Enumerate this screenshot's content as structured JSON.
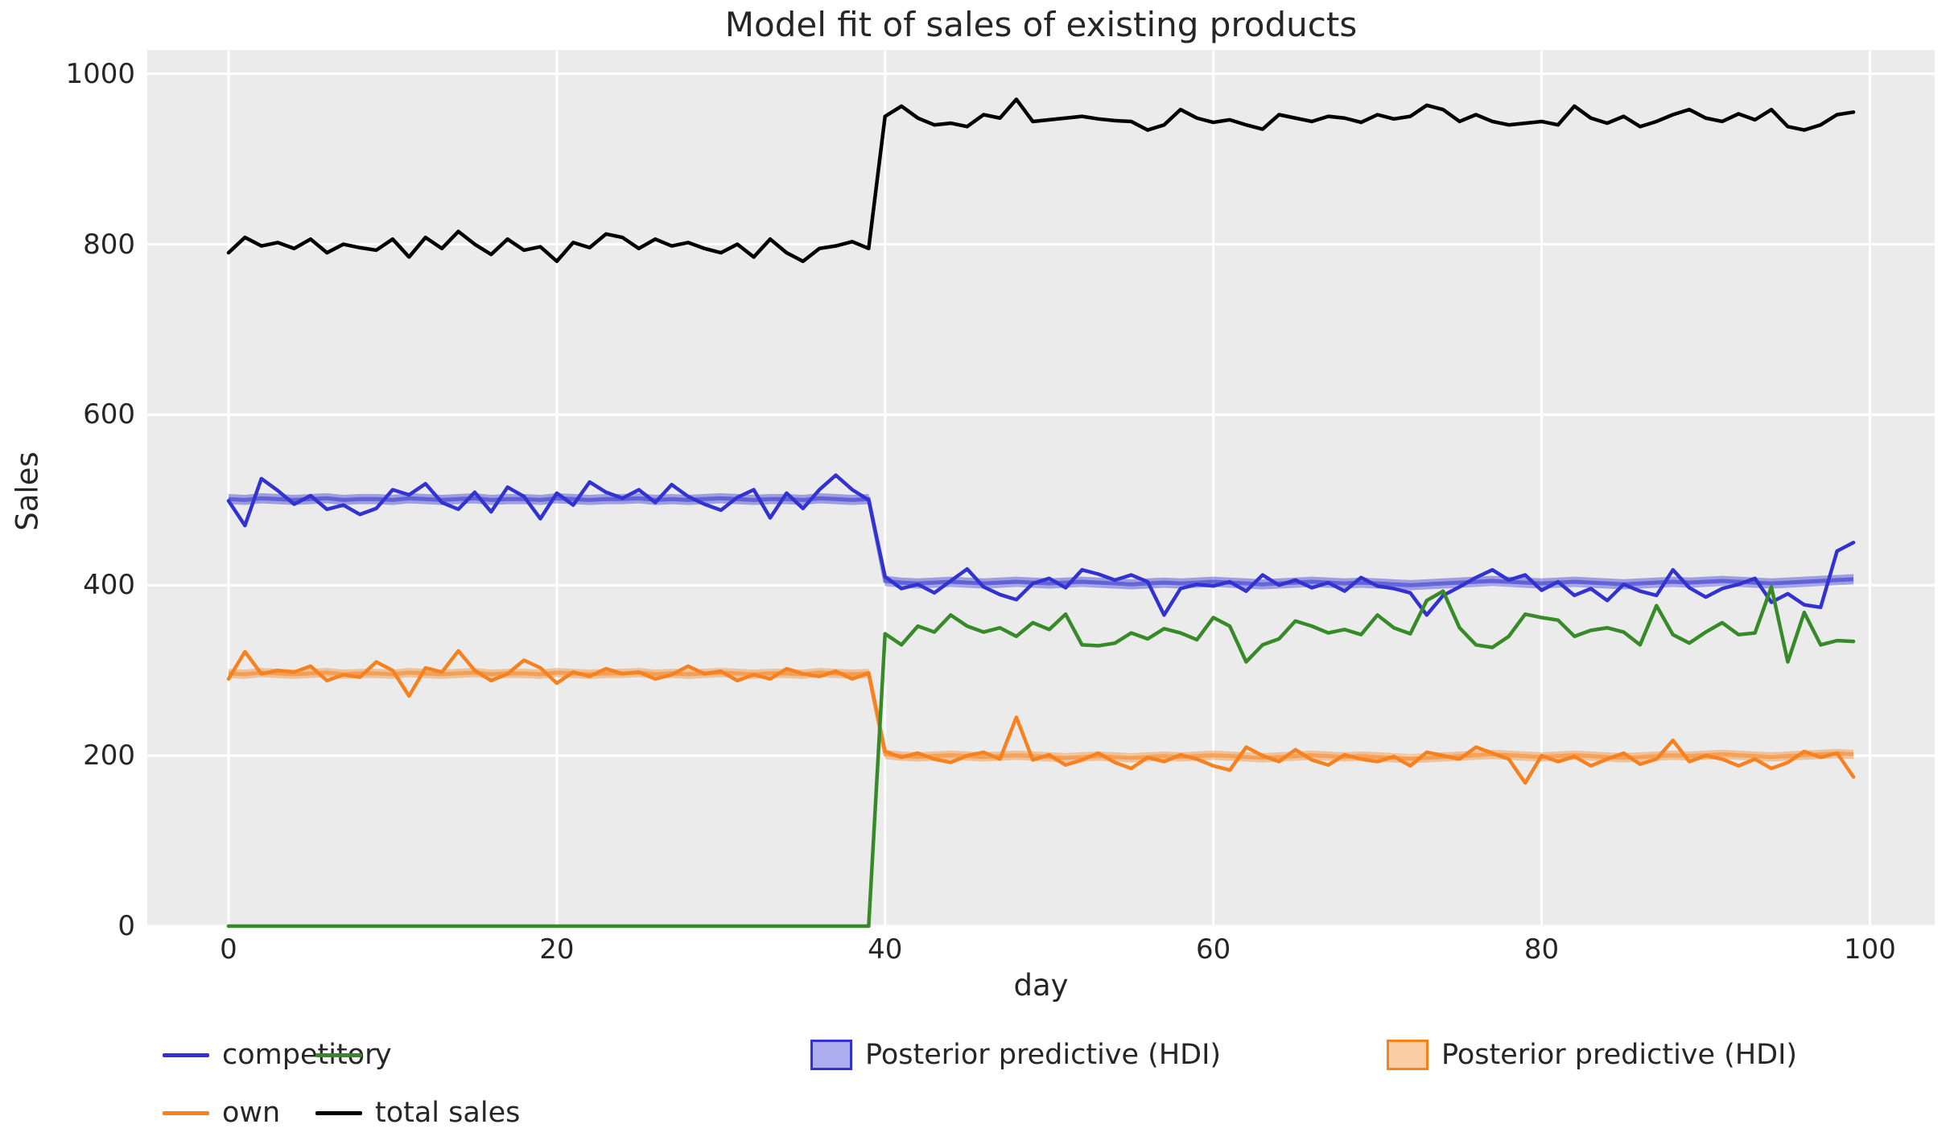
{
  "chart_data": {
    "type": "line",
    "title": "Model fit of sales of existing products",
    "xlabel": "day",
    "ylabel": "Sales",
    "xlim": [
      -4.95,
      103.95
    ],
    "ylim": [
      0,
      1028
    ],
    "x_ticks": [
      0,
      20,
      40,
      60,
      80,
      100
    ],
    "y_ticks": [
      0,
      200,
      400,
      600,
      800,
      1000
    ],
    "grid": true,
    "plot_background": "#ebebeb",
    "figure_background": "#ffffff",
    "grid_color": "#ffffff",
    "text_color": "#262626",
    "x": {
      "start": 0,
      "step": 1,
      "count": 100
    },
    "series": [
      {
        "name": "competitor",
        "color": "#3232d1",
        "line_width": 4.5,
        "values": [
          499,
          470,
          525,
          511,
          495,
          505,
          489,
          494,
          483,
          490,
          512,
          506,
          519,
          497,
          489,
          509,
          486,
          515,
          504,
          478,
          508,
          494,
          521,
          509,
          502,
          512,
          497,
          518,
          504,
          495,
          488,
          503,
          512,
          479,
          508,
          490,
          512,
          529,
          512,
          500,
          410,
          396,
          401,
          391,
          405,
          419,
          398,
          389,
          383,
          402,
          408,
          397,
          418,
          413,
          406,
          412,
          404,
          365,
          396,
          401,
          399,
          404,
          393,
          412,
          400,
          406,
          397,
          403,
          393,
          409,
          399,
          396,
          391,
          365,
          388,
          398,
          409,
          418,
          406,
          412,
          394,
          404,
          388,
          396,
          382,
          401,
          393,
          388,
          418,
          397,
          386,
          396,
          401,
          408,
          380,
          390,
          377,
          374,
          440,
          450
        ]
      },
      {
        "name": "own",
        "color": "#f6811e",
        "line_width": 4.5,
        "values": [
          290,
          322,
          296,
          300,
          298,
          305,
          288,
          295,
          292,
          310,
          300,
          270,
          303,
          298,
          323,
          300,
          288,
          296,
          312,
          303,
          285,
          298,
          293,
          302,
          296,
          298,
          290,
          295,
          305,
          296,
          299,
          288,
          295,
          290,
          302,
          296,
          293,
          299,
          290,
          297,
          205,
          198,
          203,
          196,
          192,
          200,
          204,
          196,
          245,
          195,
          201,
          189,
          195,
          203,
          192,
          185,
          198,
          193,
          201,
          196,
          188,
          183,
          210,
          200,
          193,
          207,
          195,
          189,
          201,
          196,
          193,
          199,
          188,
          204,
          200,
          196,
          210,
          203,
          196,
          168,
          200,
          193,
          199,
          188,
          196,
          203,
          190,
          196,
          218,
          193,
          200,
          196,
          188,
          196,
          185,
          192,
          205,
          198,
          203,
          175
        ]
      },
      {
        "name": "y",
        "color": "#368b28",
        "line_width": 4.5,
        "values": [
          0,
          0,
          0,
          0,
          0,
          0,
          0,
          0,
          0,
          0,
          0,
          0,
          0,
          0,
          0,
          0,
          0,
          0,
          0,
          0,
          0,
          0,
          0,
          0,
          0,
          0,
          0,
          0,
          0,
          0,
          0,
          0,
          0,
          0,
          0,
          0,
          0,
          0,
          0,
          0,
          343,
          330,
          352,
          345,
          365,
          352,
          345,
          350,
          340,
          356,
          348,
          366,
          330,
          329,
          332,
          344,
          337,
          349,
          344,
          336,
          362,
          352,
          310,
          330,
          337,
          358,
          352,
          344,
          348,
          342,
          365,
          350,
          343,
          382,
          393,
          350,
          330,
          327,
          340,
          366,
          362,
          359,
          340,
          347,
          350,
          345,
          330,
          376,
          342,
          332,
          345,
          356,
          342,
          344,
          398,
          310,
          368,
          330,
          335,
          334
        ]
      },
      {
        "name": "total sales",
        "color": "#000000",
        "line_width": 4.5,
        "values": [
          790,
          808,
          798,
          802,
          795,
          806,
          790,
          800,
          796,
          793,
          806,
          785,
          808,
          795,
          815,
          800,
          788,
          806,
          793,
          797,
          780,
          802,
          796,
          812,
          808,
          795,
          806,
          798,
          802,
          795,
          790,
          800,
          785,
          806,
          790,
          780,
          795,
          798,
          803,
          795,
          950,
          962,
          948,
          940,
          942,
          938,
          952,
          948,
          970,
          944,
          946,
          948,
          950,
          947,
          945,
          944,
          934,
          940,
          958,
          948,
          943,
          946,
          940,
          935,
          952,
          948,
          944,
          950,
          948,
          943,
          952,
          947,
          950,
          963,
          958,
          944,
          952,
          944,
          940,
          942,
          944,
          940,
          962,
          948,
          942,
          950,
          938,
          944,
          952,
          958,
          948,
          944,
          953,
          946,
          958,
          938,
          934,
          940,
          952,
          955
        ]
      }
    ],
    "bands": [
      {
        "name": "Posterior predictive (HDI)",
        "color": "#3232d1",
        "fill_opacity": 0.42,
        "lo": [
          495,
          494,
          496,
          495,
          494,
          495,
          496,
          494,
          495,
          495,
          494,
          496,
          495,
          494,
          495,
          496,
          494,
          495,
          495,
          494,
          496,
          495,
          494,
          495,
          495,
          496,
          494,
          495,
          494,
          495,
          496,
          495,
          494,
          495,
          495,
          494,
          496,
          495,
          494,
          495,
          399,
          397,
          396,
          397,
          398,
          397,
          396,
          397,
          398,
          397,
          396,
          397,
          398,
          397,
          396,
          395,
          396,
          397,
          396,
          397,
          398,
          397,
          396,
          395,
          396,
          397,
          398,
          397,
          396,
          397,
          396,
          395,
          394,
          395,
          396,
          397,
          398,
          399,
          398,
          397,
          396,
          397,
          398,
          397,
          396,
          395,
          396,
          397,
          398,
          397,
          398,
          399,
          398,
          397,
          396,
          397,
          398,
          399,
          400,
          401
        ],
        "hi": [
          507,
          506,
          508,
          507,
          506,
          507,
          508,
          506,
          507,
          507,
          506,
          508,
          507,
          506,
          507,
          508,
          506,
          507,
          507,
          506,
          508,
          507,
          506,
          507,
          507,
          508,
          506,
          507,
          506,
          507,
          508,
          507,
          506,
          507,
          507,
          506,
          508,
          507,
          506,
          507,
          411,
          409,
          408,
          409,
          410,
          409,
          408,
          409,
          410,
          409,
          408,
          409,
          410,
          409,
          408,
          407,
          408,
          409,
          408,
          409,
          410,
          409,
          408,
          407,
          408,
          409,
          410,
          409,
          408,
          409,
          408,
          407,
          406,
          407,
          408,
          409,
          410,
          411,
          410,
          409,
          408,
          409,
          410,
          409,
          408,
          407,
          408,
          409,
          410,
          409,
          410,
          411,
          410,
          409,
          408,
          409,
          410,
          411,
          412,
          413
        ]
      },
      {
        "name": "Posterior predictive (HDI)",
        "color": "#f6811e",
        "fill_opacity": 0.4,
        "lo": [
          291,
          290,
          292,
          291,
          290,
          291,
          292,
          290,
          291,
          291,
          290,
          292,
          291,
          290,
          291,
          292,
          290,
          291,
          291,
          290,
          292,
          291,
          290,
          291,
          291,
          292,
          290,
          291,
          290,
          291,
          292,
          291,
          290,
          291,
          291,
          290,
          292,
          291,
          290,
          291,
          196,
          194,
          193,
          194,
          195,
          194,
          193,
          194,
          195,
          194,
          193,
          192,
          193,
          194,
          193,
          192,
          193,
          194,
          193,
          194,
          195,
          194,
          193,
          192,
          193,
          194,
          195,
          194,
          193,
          194,
          193,
          192,
          191,
          192,
          193,
          194,
          195,
          196,
          195,
          194,
          193,
          194,
          195,
          194,
          193,
          192,
          193,
          194,
          195,
          194,
          195,
          196,
          195,
          194,
          193,
          194,
          195,
          196,
          197,
          196
        ],
        "hi": [
          302,
          301,
          303,
          302,
          301,
          302,
          303,
          301,
          302,
          302,
          301,
          303,
          302,
          301,
          302,
          303,
          301,
          302,
          302,
          301,
          303,
          302,
          301,
          302,
          302,
          303,
          301,
          302,
          301,
          302,
          303,
          302,
          301,
          302,
          302,
          301,
          303,
          302,
          301,
          302,
          207,
          205,
          204,
          205,
          206,
          205,
          204,
          205,
          206,
          205,
          204,
          203,
          204,
          205,
          204,
          203,
          204,
          205,
          204,
          205,
          206,
          205,
          204,
          203,
          204,
          205,
          206,
          205,
          204,
          205,
          204,
          203,
          202,
          203,
          204,
          205,
          206,
          207,
          206,
          205,
          204,
          205,
          206,
          205,
          204,
          203,
          204,
          205,
          206,
          205,
          206,
          207,
          206,
          205,
          204,
          205,
          206,
          207,
          208,
          207
        ]
      }
    ],
    "legend": {
      "position": "bottom",
      "entries": [
        {
          "label": "competitor",
          "type": "line",
          "color": "#3232d1"
        },
        {
          "label": "own",
          "type": "line",
          "color": "#f6811e"
        },
        {
          "label": "y",
          "type": "line",
          "color": "#368b28"
        },
        {
          "label": "total sales",
          "type": "line",
          "color": "#000000"
        },
        {
          "label": "Posterior predictive (HDI)",
          "type": "patch",
          "color": "#3232d1"
        },
        {
          "label": "Posterior predictive (HDI)",
          "type": "patch",
          "color": "#f6811e"
        }
      ]
    }
  }
}
